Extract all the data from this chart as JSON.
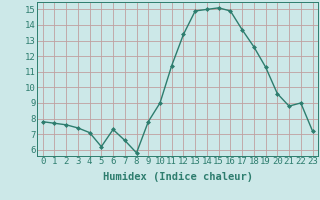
{
  "x": [
    0,
    1,
    2,
    3,
    4,
    5,
    6,
    7,
    8,
    9,
    10,
    11,
    12,
    13,
    14,
    15,
    16,
    17,
    18,
    19,
    20,
    21,
    22,
    23
  ],
  "y": [
    7.8,
    7.7,
    7.6,
    7.4,
    7.1,
    6.2,
    7.3,
    6.6,
    5.8,
    7.8,
    9.0,
    11.4,
    13.4,
    14.9,
    15.0,
    15.1,
    14.9,
    13.7,
    12.6,
    11.3,
    9.6,
    8.8,
    9.0,
    7.2
  ],
  "line_color": "#2d7d6e",
  "bg_color": "#cce8e8",
  "grid_color": "#c0a0a0",
  "xlabel": "Humidex (Indice chaleur)",
  "ylim": [
    5.6,
    15.5
  ],
  "yticks": [
    6,
    7,
    8,
    9,
    10,
    11,
    12,
    13,
    14,
    15
  ],
  "xticks": [
    0,
    1,
    2,
    3,
    4,
    5,
    6,
    7,
    8,
    9,
    10,
    11,
    12,
    13,
    14,
    15,
    16,
    17,
    18,
    19,
    20,
    21,
    22,
    23
  ],
  "marker": "D",
  "marker_size": 2.0,
  "line_width": 1.0,
  "xlabel_fontsize": 7.5,
  "tick_fontsize": 6.5
}
